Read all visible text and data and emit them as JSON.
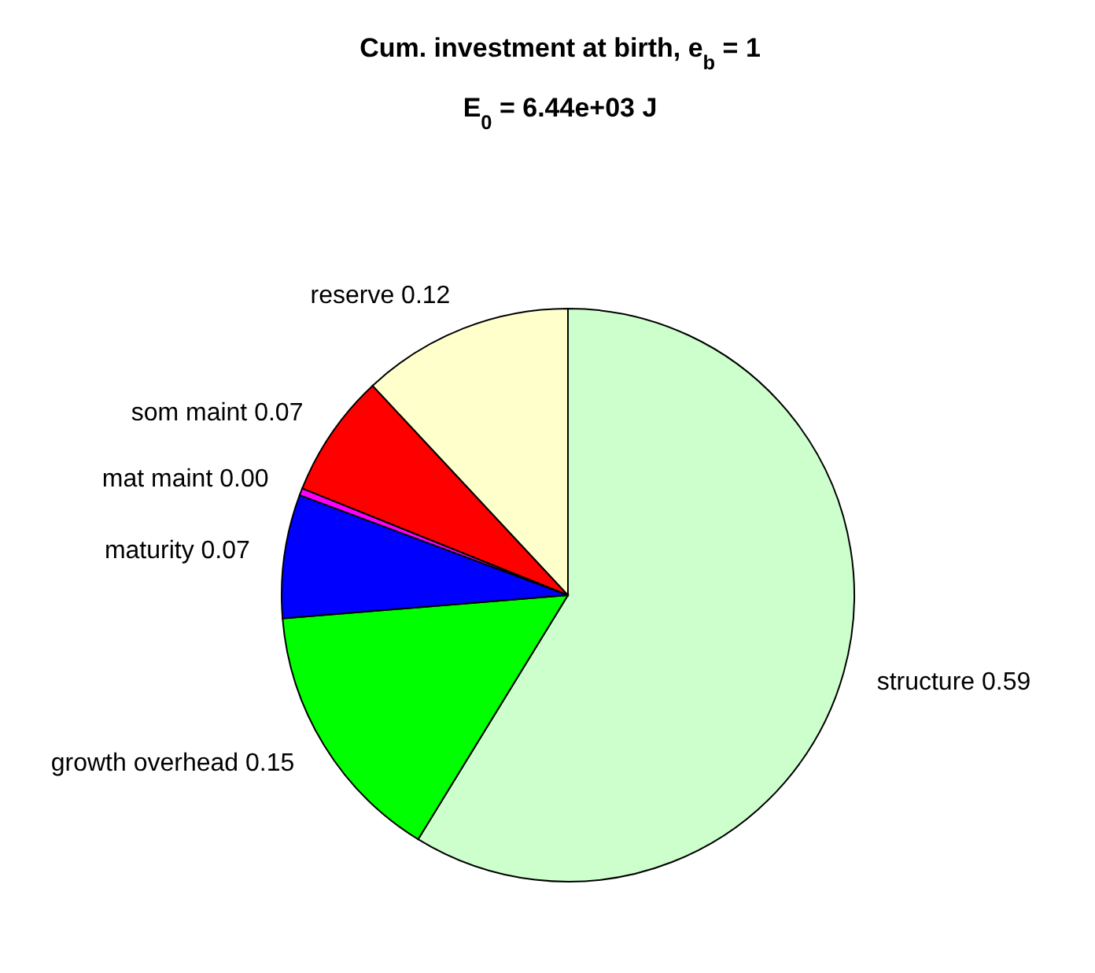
{
  "chart_data": {
    "type": "pie",
    "title": "Cum. investment at birth, e$_{b}$ = 1",
    "subtitle": "E$_{0}$ = 6.44e+03 J",
    "categories": [
      "structure",
      "growth overhead",
      "maturity",
      "mat maint",
      "som maint",
      "reserve"
    ],
    "values": [
      0.59,
      0.15,
      0.07,
      0.004,
      0.07,
      0.12
    ],
    "value_labels": [
      "0.59",
      "0.15",
      "0.07",
      "0.00",
      "0.07",
      "0.12"
    ],
    "colors": [
      "#ccffcc",
      "#00ff00",
      "#0000ff",
      "#ff00ff",
      "#ff0000",
      "#ffffcc"
    ],
    "legend": false
  }
}
